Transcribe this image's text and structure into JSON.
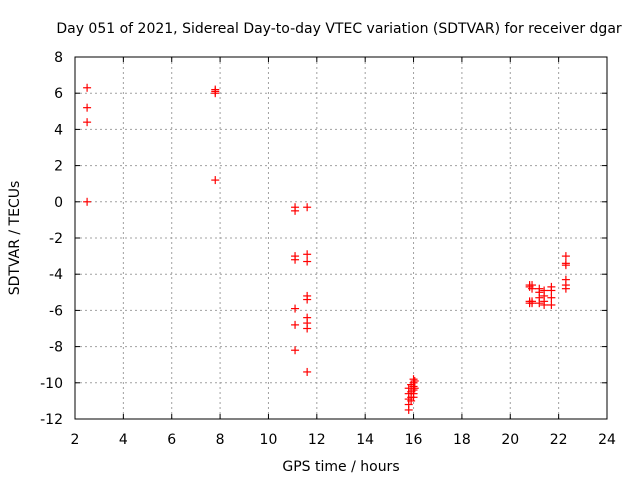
{
  "chart_data": {
    "type": "scatter",
    "title": "Day 051 of 2021, Sidereal Day-to-day VTEC variation (SDTVAR) for receiver dgar",
    "xlabel": "GPS time / hours",
    "ylabel": "SDTVAR / TECUs",
    "xlim": [
      2,
      24
    ],
    "ylim": [
      -12,
      8
    ],
    "xticks": [
      "2",
      "4",
      "6",
      "8",
      "10",
      "12",
      "14",
      "16",
      "18",
      "20",
      "22",
      "24"
    ],
    "yticks": [
      "8",
      "6",
      "4",
      "2",
      "0",
      "-2",
      "-4",
      "-6",
      "-8",
      "-10",
      "-12"
    ],
    "grid": true,
    "marker": "+",
    "marker_color": "#ff0000",
    "series": [
      {
        "name": "SDTVAR",
        "points": [
          [
            2.5,
            6.3
          ],
          [
            2.5,
            5.2
          ],
          [
            2.5,
            4.4
          ],
          [
            2.5,
            0.0
          ],
          [
            7.8,
            6.2
          ],
          [
            7.8,
            6.1
          ],
          [
            7.8,
            6.0
          ],
          [
            7.8,
            1.2
          ],
          [
            11.1,
            -0.3
          ],
          [
            11.1,
            -0.5
          ],
          [
            11.1,
            -3.0
          ],
          [
            11.1,
            -3.2
          ],
          [
            11.1,
            -5.9
          ],
          [
            11.1,
            -6.8
          ],
          [
            11.1,
            -8.2
          ],
          [
            11.6,
            -0.3
          ],
          [
            11.6,
            -2.9
          ],
          [
            11.6,
            -3.3
          ],
          [
            11.6,
            -5.2
          ],
          [
            11.6,
            -5.4
          ],
          [
            11.6,
            -6.4
          ],
          [
            11.6,
            -6.7
          ],
          [
            11.6,
            -7.0
          ],
          [
            11.6,
            -9.4
          ],
          [
            15.8,
            -10.3
          ],
          [
            15.8,
            -10.6
          ],
          [
            15.8,
            -10.9
          ],
          [
            15.8,
            -11.2
          ],
          [
            15.8,
            -11.5
          ],
          [
            15.9,
            -10.1
          ],
          [
            15.9,
            -10.5
          ],
          [
            15.9,
            -10.8
          ],
          [
            15.9,
            -11.0
          ],
          [
            16.0,
            -9.8
          ],
          [
            16.0,
            -10.0
          ],
          [
            16.0,
            -10.2
          ],
          [
            16.0,
            -10.4
          ],
          [
            16.0,
            -10.6
          ],
          [
            16.0,
            -10.8
          ],
          [
            16.05,
            -9.9
          ],
          [
            16.05,
            -10.3
          ],
          [
            20.8,
            -4.6
          ],
          [
            20.8,
            -4.7
          ],
          [
            20.8,
            -5.5
          ],
          [
            20.8,
            -5.6
          ],
          [
            20.9,
            -4.6
          ],
          [
            20.9,
            -4.8
          ],
          [
            20.9,
            -5.5
          ],
          [
            20.9,
            -5.6
          ],
          [
            21.2,
            -4.8
          ],
          [
            21.2,
            -5.0
          ],
          [
            21.2,
            -5.3
          ],
          [
            21.2,
            -5.6
          ],
          [
            21.4,
            -4.9
          ],
          [
            21.4,
            -5.2
          ],
          [
            21.4,
            -5.5
          ],
          [
            21.4,
            -5.7
          ],
          [
            21.7,
            -4.7
          ],
          [
            21.7,
            -4.9
          ],
          [
            21.7,
            -5.3
          ],
          [
            21.7,
            -5.7
          ],
          [
            22.3,
            -3.0
          ],
          [
            22.3,
            -3.4
          ],
          [
            22.3,
            -3.5
          ],
          [
            22.3,
            -4.3
          ],
          [
            22.3,
            -4.6
          ],
          [
            22.3,
            -4.8
          ]
        ]
      }
    ]
  }
}
